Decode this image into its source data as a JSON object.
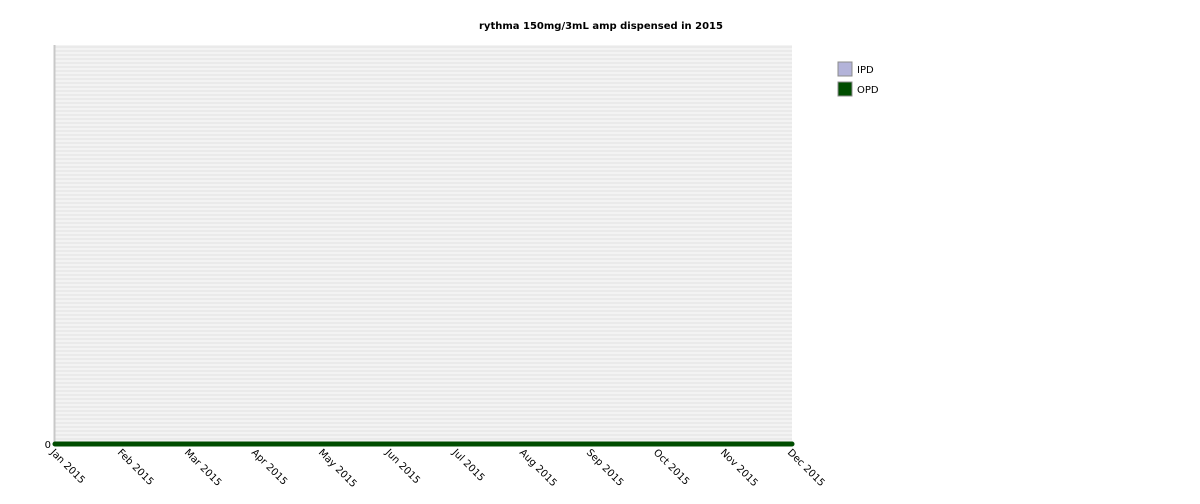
{
  "chart_data": {
    "type": "area",
    "title": "rythma 150mg/3mL amp dispensed in 2015",
    "xlabel": "",
    "ylabel": "",
    "categories": [
      "Jan 2015",
      "Feb 2015",
      "Mar 2015",
      "Apr 2015",
      "May 2015",
      "Jun 2015",
      "Jul 2015",
      "Aug 2015",
      "Sep 2015",
      "Oct 2015",
      "Nov 2015",
      "Dec 2015"
    ],
    "series": [
      {
        "name": "IPD",
        "color": "#b3b3d9",
        "values": [
          0,
          0,
          0,
          0,
          0,
          0,
          0,
          0,
          0,
          0,
          0,
          0
        ]
      },
      {
        "name": "OPD",
        "color": "#004d00",
        "values": [
          0,
          0,
          0,
          0,
          0,
          0,
          0,
          0,
          0,
          0,
          0,
          0
        ]
      }
    ],
    "y_ticks": [
      "0"
    ],
    "ylim": [
      0,
      1
    ],
    "stacked": true,
    "grid": true,
    "legend_position": "top-right",
    "colors": {
      "plot_background": "#f3f3f3",
      "grid_line": "#e2e2e2",
      "axis_line": "#c8c8c8"
    }
  }
}
